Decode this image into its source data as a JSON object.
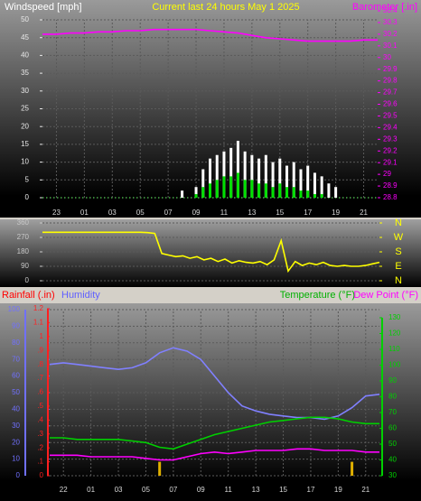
{
  "chart_data": [
    {
      "type": "combo",
      "title": "Current last 24 hours May 1 2025",
      "y_label": "Windspeed [mph]",
      "y2_label": "Barometer [.in]",
      "xlim": [
        0,
        24
      ],
      "xticks": [
        {
          "value": 1,
          "label": "23"
        },
        {
          "value": 3,
          "label": "01"
        },
        {
          "value": 5,
          "label": "03"
        },
        {
          "value": 7,
          "label": "05"
        },
        {
          "value": 9,
          "label": "07"
        },
        {
          "value": 11,
          "label": "09"
        },
        {
          "value": 13,
          "label": "11"
        },
        {
          "value": 15,
          "label": "13"
        },
        {
          "value": 17,
          "label": "15"
        },
        {
          "value": 19,
          "label": "17"
        },
        {
          "value": 21,
          "label": "19"
        },
        {
          "value": 23,
          "label": "21"
        }
      ],
      "ylim": [
        0,
        50
      ],
      "yticks": [
        0,
        5,
        10,
        15,
        20,
        25,
        30,
        35,
        40,
        45,
        50
      ],
      "y2lim": [
        28.8,
        30.4
      ],
      "y2ticks": [
        28.8,
        28.9,
        29,
        29.1,
        29.2,
        29.3,
        29.4,
        29.5,
        29.6,
        29.7,
        29.8,
        29.9,
        30,
        30.1,
        30.2,
        30.3,
        30.4
      ],
      "grid": true,
      "series": [
        {
          "kind": "bar",
          "color": "#ffffff",
          "x": [
            10,
            10.5,
            11,
            11.5,
            12,
            12.5,
            13,
            13.5,
            14,
            14.5,
            15,
            15.5,
            16,
            16.5,
            17,
            17.5,
            18,
            18.5,
            19,
            19.5,
            20,
            20.5,
            21
          ],
          "values": [
            2,
            0,
            3,
            8,
            11,
            12,
            13,
            14,
            16,
            13,
            12,
            11,
            12,
            10,
            11,
            9,
            10,
            8,
            9,
            7,
            6,
            4,
            3
          ]
        },
        {
          "kind": "bar",
          "color": "#00e000",
          "x": [
            10,
            10.5,
            11,
            11.5,
            12,
            12.5,
            13,
            13.5,
            14,
            14.5,
            15,
            15.5,
            16,
            16.5,
            17,
            17.5,
            18,
            18.5,
            19,
            19.5,
            20,
            20.5,
            21
          ],
          "values": [
            0,
            0,
            1,
            3,
            4,
            5,
            6,
            6,
            7,
            5,
            5,
            4,
            4,
            3,
            4,
            3,
            3,
            2,
            2,
            1,
            1,
            0,
            0
          ]
        },
        {
          "kind": "line",
          "axis": "y2",
          "color": "#ff00ff",
          "x": [
            0,
            1,
            2,
            3,
            4,
            5,
            6,
            7,
            8,
            9,
            10,
            11,
            12,
            13,
            14,
            15,
            16,
            17,
            18,
            19,
            20,
            21,
            22,
            23,
            24
          ],
          "values": [
            30.2,
            30.2,
            30.21,
            30.21,
            30.22,
            30.22,
            30.23,
            30.23,
            30.24,
            30.24,
            30.24,
            30.24,
            30.23,
            30.22,
            30.21,
            30.19,
            30.17,
            30.16,
            30.15,
            30.14,
            30.14,
            30.14,
            30.14,
            30.15,
            30.15
          ]
        }
      ]
    },
    {
      "type": "line",
      "xlim": [
        0,
        24
      ],
      "ylim": [
        0,
        360
      ],
      "yticks": [
        0,
        90,
        180,
        270,
        360
      ],
      "y2lim": [
        0,
        360
      ],
      "y2ticks": [
        {
          "value": 0,
          "label": "N"
        },
        {
          "value": 90,
          "label": "E"
        },
        {
          "value": 180,
          "label": "S"
        },
        {
          "value": 270,
          "label": "W"
        },
        {
          "value": 360,
          "label": "N"
        }
      ],
      "grid": true,
      "series": [
        {
          "kind": "line",
          "color": "#ffff00",
          "x": [
            0,
            0.5,
            1,
            1.5,
            2,
            2.5,
            3,
            3.5,
            4,
            4.5,
            5,
            5.5,
            6,
            6.5,
            7,
            7.5,
            8,
            8.5,
            9,
            9.5,
            10,
            10.5,
            11,
            11.5,
            12,
            12.5,
            13,
            13.5,
            14,
            14.5,
            15,
            15.5,
            16,
            16.5,
            17,
            17.5,
            18,
            18.5,
            19,
            19.5,
            20,
            20.5,
            21,
            21.5,
            22,
            22.5,
            23,
            23.5,
            24
          ],
          "values": [
            302,
            302,
            302,
            302,
            302,
            302,
            302,
            302,
            302,
            302,
            302,
            302,
            302,
            302,
            302,
            300,
            295,
            170,
            160,
            150,
            155,
            140,
            150,
            130,
            140,
            120,
            135,
            110,
            125,
            115,
            110,
            120,
            100,
            130,
            250,
            60,
            120,
            95,
            110,
            100,
            115,
            95,
            90,
            95,
            90,
            90,
            95,
            105,
            115
          ]
        }
      ]
    },
    {
      "type": "combo",
      "xlim": [
        0,
        24
      ],
      "xticks": [
        {
          "value": 1,
          "label": "22"
        },
        {
          "value": 3,
          "label": "01"
        },
        {
          "value": 5,
          "label": "03"
        },
        {
          "value": 7,
          "label": "05"
        },
        {
          "value": 9,
          "label": "07"
        },
        {
          "value": 11,
          "label": "09"
        },
        {
          "value": 13,
          "label": "11"
        },
        {
          "value": 15,
          "label": "13"
        },
        {
          "value": 17,
          "label": "15"
        },
        {
          "value": 19,
          "label": "17"
        },
        {
          "value": 21,
          "label": "19"
        },
        {
          "value": 23,
          "label": "21"
        }
      ],
      "ylim": [
        0,
        100
      ],
      "yticks": [
        0,
        10,
        20,
        30,
        40,
        50,
        60,
        70,
        80,
        90,
        100
      ],
      "y2lim": [
        30,
        130
      ],
      "y2ticks": [
        30,
        40,
        50,
        60,
        70,
        80,
        90,
        100,
        110,
        120,
        130
      ],
      "y3lim": [
        0,
        1.2
      ],
      "y3ticks": [
        0,
        {
          "value": 0.1,
          "label": ".1"
        },
        {
          "value": 0.2,
          "label": ".2"
        },
        {
          "value": 0.3,
          "label": ".3"
        },
        {
          "value": 0.4,
          "label": ".4"
        },
        {
          "value": 0.5,
          "label": ".5"
        },
        {
          "value": 0.6,
          "label": ".6"
        },
        {
          "value": 0.7,
          "label": ".7"
        },
        {
          "value": 0.8,
          "label": ".8"
        },
        {
          "value": 0.9,
          "label": ".9"
        },
        1,
        1.1,
        1.2
      ],
      "grid": true,
      "series": [
        {
          "name": "Rainfall (.in)",
          "kind": "bar",
          "axis": "y3",
          "color": "#e0b000",
          "x": [
            8,
            22
          ],
          "values": [
            0.1,
            0.1
          ]
        },
        {
          "name": "Humidity",
          "kind": "line",
          "color": "#8080ff",
          "x": [
            0,
            1,
            2,
            3,
            4,
            5,
            6,
            7,
            8,
            9,
            10,
            11,
            12,
            13,
            14,
            15,
            16,
            17,
            18,
            19,
            20,
            21,
            22,
            23,
            24
          ],
          "values": [
            67,
            68,
            67,
            66,
            65,
            64,
            65,
            68,
            74,
            77,
            75,
            70,
            60,
            50,
            42,
            39,
            37,
            36,
            35,
            35,
            34,
            36,
            41,
            48,
            49
          ]
        },
        {
          "name": "Temperature (°F)",
          "kind": "line",
          "axis": "y2",
          "color": "#00d000",
          "x": [
            0,
            1,
            2,
            3,
            4,
            5,
            6,
            7,
            8,
            9,
            10,
            11,
            12,
            13,
            14,
            15,
            16,
            17,
            18,
            19,
            20,
            21,
            22,
            23,
            24
          ],
          "values": [
            54,
            54,
            53,
            53,
            53,
            53,
            52,
            51,
            48,
            47,
            50,
            53,
            56,
            58,
            60,
            62,
            64,
            65,
            66,
            67,
            67,
            66,
            64,
            63,
            63
          ]
        },
        {
          "name": "Dew Point (°F)",
          "kind": "line",
          "axis": "y2",
          "color": "#ff00ff",
          "x": [
            0,
            1,
            2,
            3,
            4,
            5,
            6,
            7,
            8,
            9,
            10,
            11,
            12,
            13,
            14,
            15,
            16,
            17,
            18,
            19,
            20,
            21,
            22,
            23,
            24
          ],
          "values": [
            43,
            43,
            43,
            42,
            42,
            42,
            42,
            41,
            40,
            40,
            42,
            44,
            45,
            44,
            45,
            46,
            46,
            46,
            47,
            47,
            46,
            46,
            46,
            45,
            45
          ]
        }
      ]
    }
  ]
}
